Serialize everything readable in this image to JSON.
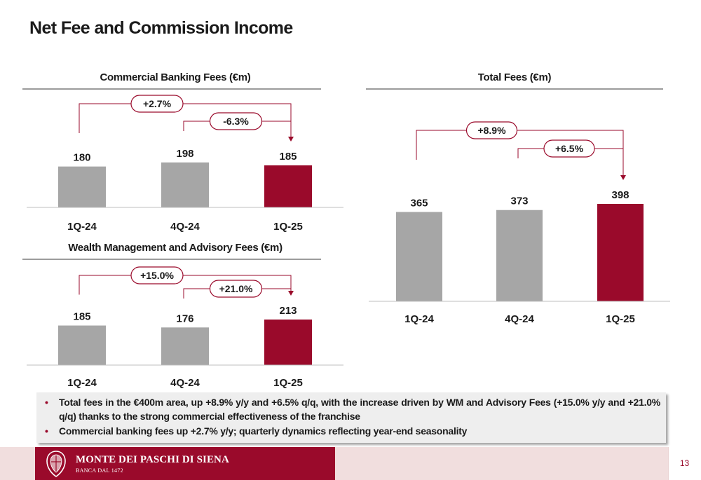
{
  "page": {
    "title": "Net Fee and Commission Income",
    "page_number": "13"
  },
  "colors": {
    "accent": "#9a0a2b",
    "bar_gray": "#a6a6a6",
    "axis": "#bfbfbf"
  },
  "chart_data": [
    {
      "id": "commercial",
      "type": "bar",
      "title": "Commercial Banking Fees (€m)",
      "categories": [
        "1Q-24",
        "4Q-24",
        "1Q-25"
      ],
      "values": [
        180,
        198,
        185
      ],
      "highlight_index": 2,
      "annotations": [
        {
          "label": "+2.7%",
          "from": "1Q-24",
          "to": "1Q-25"
        },
        {
          "label": "-6.3%",
          "from": "4Q-24",
          "to": "1Q-25"
        }
      ]
    },
    {
      "id": "wealth",
      "type": "bar",
      "title": "Wealth Management and Advisory Fees (€m)",
      "categories": [
        "1Q-24",
        "4Q-24",
        "1Q-25"
      ],
      "values": [
        185,
        176,
        213
      ],
      "highlight_index": 2,
      "annotations": [
        {
          "label": "+15.0%",
          "from": "1Q-24",
          "to": "1Q-25"
        },
        {
          "label": "+21.0%",
          "from": "4Q-24",
          "to": "1Q-25"
        }
      ]
    },
    {
      "id": "total",
      "type": "bar",
      "title": "Total Fees (€m)",
      "categories": [
        "1Q-24",
        "4Q-24",
        "1Q-25"
      ],
      "values": [
        365,
        373,
        398
      ],
      "highlight_index": 2,
      "annotations": [
        {
          "label": "+8.9%",
          "from": "1Q-24",
          "to": "1Q-25"
        },
        {
          "label": "+6.5%",
          "from": "4Q-24",
          "to": "1Q-25"
        }
      ]
    }
  ],
  "summary": {
    "bullets": [
      "Total fees in the €400m area, up +8.9% y/y and +6.5% q/q, with the increase driven by WM and Advisory Fees (+15.0% y/y and +21.0% q/q) thanks to the strong commercial effectiveness of the franchise",
      "Commercial banking fees up +2.7% y/y; quarterly dynamics reflecting year-end seasonality"
    ]
  },
  "footer": {
    "brand": "MONTE DEI PASCHI DI SIENA",
    "subtitle": "BANCA DAL 1472",
    "emblem": "bank-crest-icon"
  }
}
